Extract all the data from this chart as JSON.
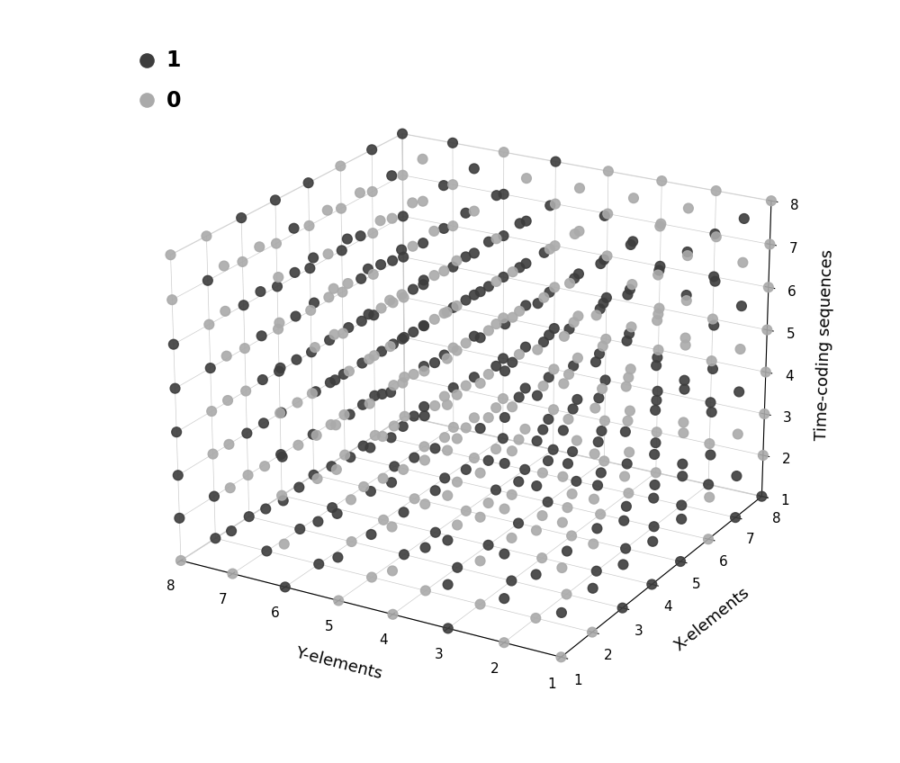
{
  "xlabel": "Y-elements",
  "ylabel": "X-elements",
  "zlabel": "Time-coding sequences",
  "color_1": "#3d3d3d",
  "color_0": "#aaaaaa",
  "background_color": "#ffffff",
  "marker_size": 60,
  "legend_1_label": "1",
  "legend_0_label": "0",
  "elev": 22,
  "azim": -60,
  "figwidth": 10.0,
  "figheight": 8.48,
  "dpi": 100,
  "seed": 42
}
